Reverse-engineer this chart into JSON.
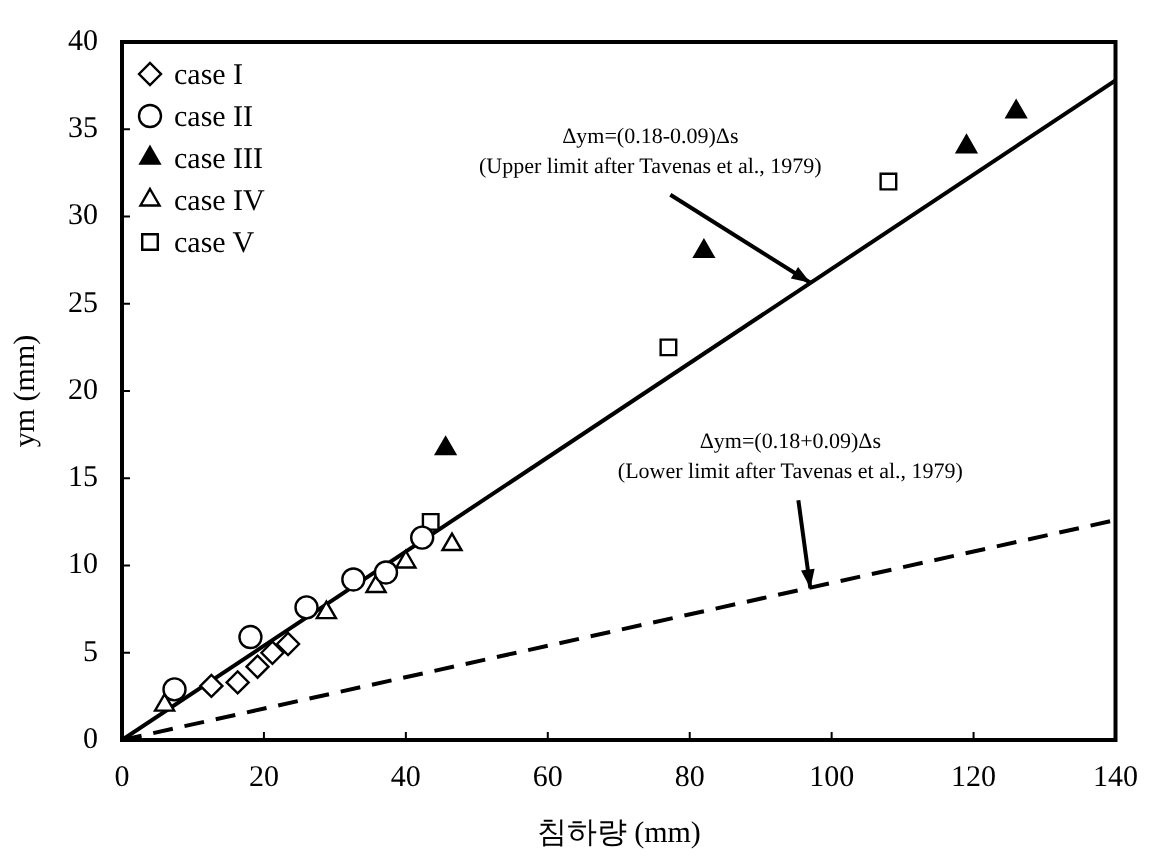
{
  "chart_data": {
    "type": "scatter",
    "xlabel": "침하량 (mm)",
    "ylabel": "ym (mm)",
    "xlim": [
      0,
      140
    ],
    "xticks": [
      0,
      20,
      40,
      60,
      80,
      100,
      120,
      140
    ],
    "ylim": [
      0,
      40
    ],
    "yticks": [
      0,
      5,
      10,
      15,
      20,
      25,
      30,
      35,
      40
    ],
    "grid": false,
    "legend": "top left",
    "series": [
      {
        "name": "case I",
        "color": "#000000",
        "marker": "diamond",
        "x": [
          12.6,
          16.3,
          19.1,
          21.2,
          23.4
        ],
        "values": [
          3.1,
          3.3,
          4.2,
          5.0,
          5.5
        ]
      },
      {
        "name": "case II",
        "color": "#000000",
        "marker": "circle",
        "x": [
          7.4,
          18.1,
          26,
          32.6,
          37.2,
          42.3
        ],
        "values": [
          2.9,
          5.9,
          7.6,
          9.2,
          9.6,
          11.6
        ]
      },
      {
        "name": "case III",
        "color": "#000000",
        "marker": "triangle",
        "x": [
          45.6,
          82,
          119,
          126
        ],
        "values": [
          16.7,
          28,
          34,
          36
        ]
      },
      {
        "name": "case IV",
        "color": "#000000",
        "marker": "triangle",
        "x": [
          6,
          28.8,
          35.8,
          40,
          46.5
        ],
        "values": [
          2.0,
          7.3,
          8.8,
          10.2,
          11.2
        ]
      },
      {
        "name": "case V",
        "color": "#000000",
        "marker": "square",
        "x": [
          43.5,
          77,
          108
        ],
        "values": [
          12.5,
          22.5,
          32
        ]
      },
      {
        "type": "line",
        "color": "#000000",
        "line_style": "solid",
        "marker": "none",
        "x": [
          0,
          140
        ],
        "values": [
          0,
          37.8
        ]
      },
      {
        "type": "line",
        "color": "#000000",
        "line_style": "dashed",
        "marker": "none",
        "x": [
          0,
          140
        ],
        "values": [
          0,
          12.6
        ]
      }
    ],
    "annotations": [
      {
        "text": "Δym=(0.18-0.09)Δs\n(Upper limit after Tavenas et al., 1979)",
        "x": 97,
        "y": 26.2
      },
      {
        "text": "Δym=(0.18+0.09)Δs\n(Lower limit after Tavenas et al., 1979)",
        "x": 97,
        "y": 8.7
      }
    ]
  }
}
